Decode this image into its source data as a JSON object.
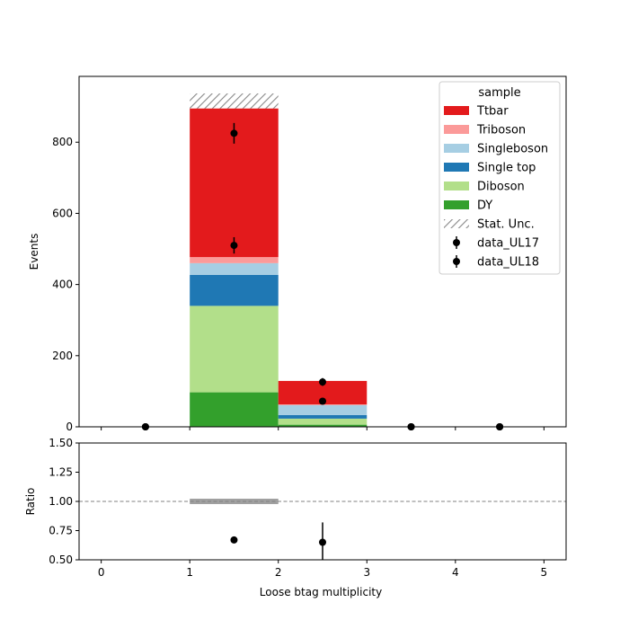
{
  "chart_data": [
    {
      "type": "bar",
      "stacked": true,
      "categories": [
        "0",
        "1",
        "2",
        "3",
        "4"
      ],
      "bin_edges": [
        0,
        1,
        2,
        3,
        4,
        5
      ],
      "ylabel": "Events",
      "xlim": [
        -0.25,
        5.25
      ],
      "ylim": [
        0,
        985
      ],
      "yticks": [
        "0",
        "200",
        "400",
        "600",
        "800"
      ],
      "legend_title": "sample",
      "legend_position": "top-right",
      "series": [
        {
          "name": "DY",
          "color": "#33a02c",
          "values": [
            0,
            97,
            6,
            0,
            0
          ]
        },
        {
          "name": "Diboson",
          "color": "#b2df8a",
          "values": [
            0,
            243,
            17,
            0,
            0
          ]
        },
        {
          "name": "Single top",
          "color": "#1f78b4",
          "values": [
            0,
            87,
            10,
            0,
            0
          ]
        },
        {
          "name": "Singleboson",
          "color": "#a6cee3",
          "values": [
            0,
            33,
            28,
            0,
            0
          ]
        },
        {
          "name": "Triboson",
          "color": "#fb9a99",
          "values": [
            0,
            17,
            2,
            0,
            0
          ]
        },
        {
          "name": "Ttbar",
          "color": "#e31a1c",
          "values": [
            0,
            418,
            66,
            0,
            0
          ]
        }
      ],
      "stat_unc": {
        "name": "Stat. Unc.",
        "bins": [
          {
            "bin": 1,
            "low": 895,
            "high": 937
          }
        ]
      },
      "data_points": [
        {
          "name": "data_UL17",
          "x": [
            0.5,
            1.5,
            2.5,
            3.5,
            4.5
          ],
          "y": [
            0,
            825,
            126,
            0,
            0
          ],
          "err": [
            0,
            29,
            11,
            0,
            0
          ]
        },
        {
          "name": "data_UL18",
          "x": [
            0.5,
            1.5,
            2.5,
            3.5,
            4.5
          ],
          "y": [
            0,
            510,
            72,
            0,
            0
          ],
          "err": [
            0,
            23,
            8,
            0,
            0
          ]
        }
      ]
    },
    {
      "type": "scatter",
      "xlabel": "Loose btag multiplicity",
      "ylabel": "Ratio",
      "xlim": [
        -0.25,
        5.25
      ],
      "ylim": [
        0.5,
        1.5
      ],
      "xticks": [
        "0",
        "1",
        "2",
        "3",
        "4",
        "5"
      ],
      "yticks": [
        "0.50",
        "0.75",
        "1.00",
        "1.25",
        "1.50"
      ],
      "reference_line": 1.0,
      "unc_band": [
        {
          "x0": 1,
          "x1": 2,
          "low": 0.977,
          "high": 1.023
        }
      ],
      "points": [
        {
          "x": 1.5,
          "y": 0.67,
          "err": 0.01
        },
        {
          "x": 2.5,
          "y": 0.65,
          "err": 0.17
        }
      ]
    }
  ]
}
